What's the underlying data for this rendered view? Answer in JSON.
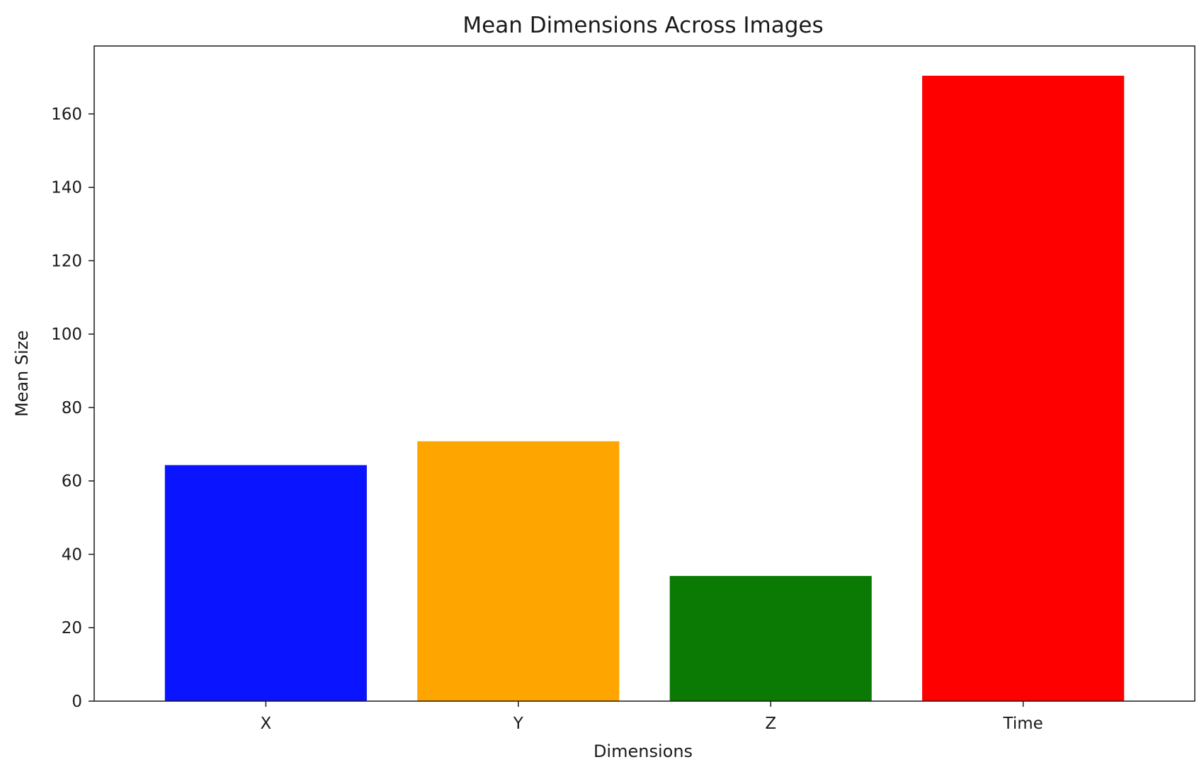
{
  "chart_data": {
    "type": "bar",
    "title": "Mean Dimensions Across Images",
    "xlabel": "Dimensions",
    "ylabel": "Mean Size",
    "categories": [
      "X",
      "Y",
      "Z",
      "Time"
    ],
    "values": [
      64.3,
      70.8,
      34.1,
      170.4
    ],
    "colors": [
      "#0a14ff",
      "#ffa500",
      "#0a7a05",
      "#ff0000"
    ],
    "ylim": [
      0,
      178.5
    ],
    "yticks": [
      0,
      20,
      40,
      60,
      80,
      100,
      120,
      140,
      160
    ],
    "grid": false,
    "legend": "none"
  }
}
